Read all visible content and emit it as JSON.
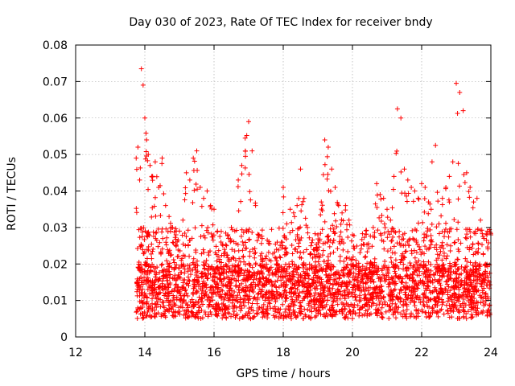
{
  "chart_data": {
    "type": "scatter",
    "title": "Day 030 of 2023, Rate Of TEC Index for receiver bndy",
    "xlabel": "GPS time / hours",
    "ylabel": "ROTI / TECUs",
    "xlim": [
      12,
      24
    ],
    "ylim": [
      0,
      0.08
    ],
    "x_ticks": [
      12,
      14,
      16,
      18,
      20,
      22,
      24
    ],
    "x_tick_labels": [
      "12",
      "14",
      "16",
      "18",
      "20",
      "22",
      "24"
    ],
    "y_ticks": [
      0,
      0.01,
      0.02,
      0.03,
      0.04,
      0.05,
      0.06,
      0.07,
      0.08
    ],
    "y_tick_labels": [
      "0",
      "0.01",
      "0.02",
      "0.03",
      "0.04",
      "0.05",
      "0.06",
      "0.07",
      "0.08"
    ],
    "grid": true,
    "marker": "+",
    "color": "#ff0000",
    "series": [
      {
        "name": "ROTI",
        "x": [
          13.75,
          13.8,
          13.85,
          13.9,
          13.95,
          14.0,
          14.05,
          14.1,
          14.15,
          14.2,
          14.3,
          14.4,
          14.5,
          14.6,
          14.7,
          14.8,
          14.9,
          15.0,
          15.1,
          15.2,
          15.3,
          15.4,
          15.5,
          15.6,
          15.7,
          15.8,
          15.9,
          16.0,
          16.1,
          16.2,
          16.3,
          16.4,
          16.5,
          16.6,
          16.7,
          16.8,
          16.9,
          17.0,
          17.1,
          17.2,
          17.3,
          17.4,
          17.5,
          17.6,
          17.7,
          17.8,
          17.9,
          18.0,
          18.1,
          18.2,
          18.3,
          18.4,
          18.5,
          18.6,
          18.7,
          18.8,
          18.9,
          19.0,
          19.1,
          19.2,
          19.3,
          19.4,
          19.5,
          19.6,
          19.7,
          19.8,
          19.9,
          20.0,
          20.1,
          20.2,
          20.3,
          20.4,
          20.5,
          20.6,
          20.7,
          20.8,
          20.9,
          21.0,
          21.1,
          21.2,
          21.3,
          21.4,
          21.5,
          21.6,
          21.7,
          21.8,
          21.9,
          22.0,
          22.1,
          22.2,
          22.3,
          22.4,
          22.5,
          22.6,
          22.7,
          22.8,
          22.9,
          23.0,
          23.1,
          23.2,
          23.3,
          23.4,
          23.5,
          23.6,
          23.7,
          23.8,
          23.9,
          24.0
        ],
        "y": [
          0.049,
          0.052,
          0.043,
          0.0735,
          0.069,
          0.06,
          0.054,
          0.05,
          0.047,
          0.044,
          0.048,
          0.041,
          0.049,
          0.036,
          0.033,
          0.03,
          0.028,
          0.029,
          0.032,
          0.045,
          0.043,
          0.049,
          0.051,
          0.041,
          0.038,
          0.04,
          0.036,
          0.035,
          0.029,
          0.026,
          0.024,
          0.028,
          0.03,
          0.029,
          0.043,
          0.047,
          0.0545,
          0.059,
          0.051,
          0.036,
          0.028,
          0.021,
          0.016,
          0.015,
          0.017,
          0.02,
          0.022,
          0.041,
          0.031,
          0.035,
          0.034,
          0.036,
          0.046,
          0.038,
          0.03,
          0.025,
          0.024,
          0.028,
          0.037,
          0.054,
          0.052,
          0.046,
          0.041,
          0.036,
          0.034,
          0.036,
          0.032,
          0.028,
          0.021,
          0.018,
          0.016,
          0.017,
          0.019,
          0.03,
          0.042,
          0.039,
          0.038,
          0.035,
          0.032,
          0.044,
          0.0625,
          0.06,
          0.046,
          0.043,
          0.041,
          0.04,
          0.038,
          0.042,
          0.041,
          0.037,
          0.048,
          0.0525,
          0.031,
          0.038,
          0.041,
          0.044,
          0.048,
          0.0695,
          0.067,
          0.062,
          0.045,
          0.041,
          0.037,
          0.038,
          0.032,
          0.027,
          0.029,
          0.028
        ]
      }
    ]
  }
}
